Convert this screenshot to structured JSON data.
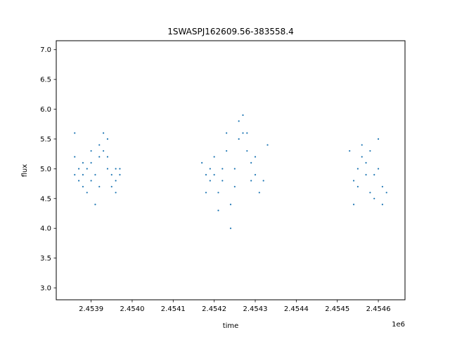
{
  "chart_data": {
    "type": "scatter",
    "title": "1SWASPJ162609.56-383558.4",
    "xlabel": "time",
    "ylabel": "flux",
    "x_offset_label": "1e6",
    "xlim": [
      2.453815,
      2.454665
    ],
    "ylim": [
      2.8,
      7.15
    ],
    "x_ticks": [
      2.4539,
      2.454,
      2.4541,
      2.4542,
      2.4543,
      2.4544,
      2.4545,
      2.4546
    ],
    "x_tick_labels": [
      "2.4539",
      "2.4540",
      "2.4541",
      "2.4542",
      "2.4543",
      "2.4544",
      "2.4545",
      "2.4546"
    ],
    "y_ticks": [
      3.0,
      3.5,
      4.0,
      4.5,
      5.0,
      5.5,
      6.0,
      6.5,
      7.0
    ],
    "y_tick_labels": [
      "3.0",
      "3.5",
      "4.0",
      "4.5",
      "5.0",
      "5.5",
      "6.0",
      "6.5",
      "7.0"
    ],
    "grid": false,
    "legend": "none",
    "marker_color": "#1f77b4",
    "series": [
      {
        "x": [
          2.45386,
          2.45386,
          2.45386,
          2.45387,
          2.45387,
          2.45388,
          2.45388,
          2.45388,
          2.45389,
          2.45389,
          2.4539,
          2.4539,
          2.4539,
          2.45391,
          2.45391,
          2.45392,
          2.45392,
          2.45392,
          2.45393,
          2.45393,
          2.45394,
          2.45394,
          2.45394,
          2.45395,
          2.45395,
          2.45396,
          2.45396,
          2.45396,
          2.45397,
          2.45397
        ],
        "y": [
          5.6,
          5.2,
          4.9,
          5.0,
          4.8,
          4.9,
          4.7,
          5.1,
          5.0,
          4.6,
          5.1,
          5.3,
          4.8,
          4.9,
          4.4,
          4.7,
          5.4,
          5.2,
          5.6,
          5.3,
          5.5,
          5.2,
          5.0,
          4.9,
          4.7,
          5.0,
          4.8,
          4.6,
          4.9,
          5.0
        ]
      },
      {
        "x": [
          2.45417,
          2.45418,
          2.45418,
          2.45419,
          2.45419,
          2.4542,
          2.4542,
          2.45421,
          2.45421,
          2.45422,
          2.45422,
          2.45423,
          2.45423,
          2.45424,
          2.45424,
          2.45425,
          2.45425,
          2.45426,
          2.45426,
          2.45427,
          2.45427,
          2.45428,
          2.45428,
          2.45429,
          2.45429,
          2.4543,
          2.4543,
          2.45431,
          2.45432,
          2.45433
        ],
        "y": [
          5.1,
          4.9,
          4.6,
          5.0,
          4.8,
          5.2,
          4.9,
          4.6,
          4.3,
          4.8,
          5.0,
          5.6,
          5.3,
          4.4,
          4.0,
          4.7,
          5.0,
          5.8,
          5.5,
          5.9,
          5.6,
          5.3,
          5.6,
          5.1,
          4.8,
          5.2,
          4.9,
          4.6,
          4.8,
          5.4
        ]
      },
      {
        "x": [
          2.45453,
          2.45454,
          2.45454,
          2.45455,
          2.45455,
          2.45456,
          2.45456,
          2.45457,
          2.45457,
          2.45458,
          2.45458,
          2.45459,
          2.45459,
          2.4546,
          2.4546,
          2.45461,
          2.45461,
          2.45462
        ],
        "y": [
          5.3,
          4.8,
          4.4,
          5.0,
          4.7,
          5.4,
          5.2,
          4.9,
          5.1,
          4.6,
          5.3,
          4.9,
          4.5,
          5.5,
          5.0,
          4.7,
          4.4,
          4.6
        ]
      }
    ]
  }
}
